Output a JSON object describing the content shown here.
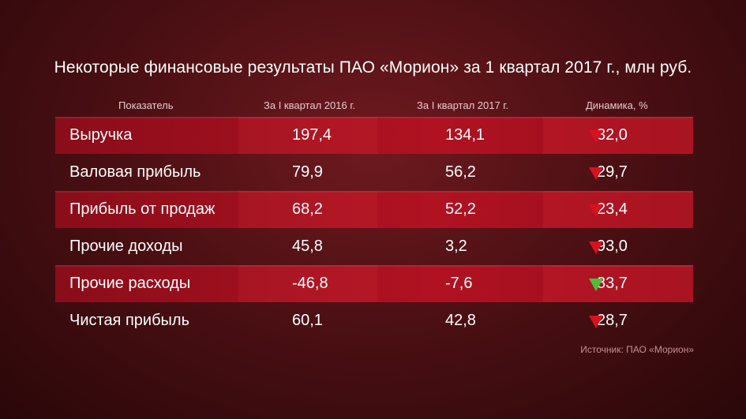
{
  "chart_data": {
    "type": "table",
    "title": "Некоторые финансовые результаты ПАО «Морион» за 1 квартал 2017 г., млн руб.",
    "columns": [
      "Показатель",
      "За I квартал 2016 г.",
      "За I квартал 2017 г.",
      "Динамика, %"
    ],
    "rows": [
      {
        "label": "Выручка",
        "v2016": "197,4",
        "v2017": "134,1",
        "direction": "down",
        "dynamics": "32,0"
      },
      {
        "label": "Валовая прибыль",
        "v2016": "79,9",
        "v2017": "56,2",
        "direction": "down",
        "dynamics": "29,7"
      },
      {
        "label": "Прибыль от продаж",
        "v2016": "68,2",
        "v2017": "52,2",
        "direction": "down",
        "dynamics": "23,4"
      },
      {
        "label": "Прочие доходы",
        "v2016": "45,8",
        "v2017": "3,2",
        "direction": "down",
        "dynamics": "93,0"
      },
      {
        "label": "Прочие расходы",
        "v2016": "-46,8",
        "v2017": "-7,6",
        "direction": "down",
        "dynamics": "83,7"
      },
      {
        "label": "Чистая прибыль",
        "v2016": "60,1",
        "v2017": "42,8",
        "direction": "down",
        "dynamics": "28,7"
      }
    ],
    "source": "Источник: ПАО «Морион»"
  },
  "colors": {
    "background": "#4d1014",
    "band": "#a5101f",
    "arrow_red": "#d8111f",
    "arrow_green": "#4bbf3a"
  }
}
